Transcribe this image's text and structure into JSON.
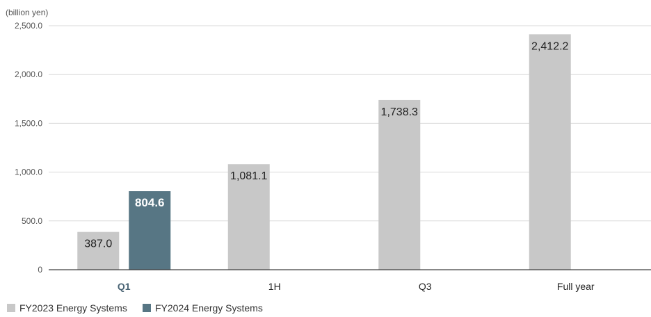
{
  "chart_data": {
    "type": "bar",
    "unit_label": "(billion yen)",
    "categories": [
      "Q1",
      "1H",
      "Q3",
      "Full year"
    ],
    "highlight_category": "Q1",
    "series": [
      {
        "name": "FY2023 Energy Systems",
        "color": "#c8c8c8",
        "values": [
          387.0,
          1081.1,
          1738.3,
          2412.2
        ],
        "labels": [
          "387.0",
          "1,081.1",
          "1,738.3",
          "2,412.2"
        ]
      },
      {
        "name": "FY2024 Energy Systems",
        "color": "#577684",
        "values": [
          804.6,
          null,
          null,
          null
        ],
        "labels": [
          "804.6",
          null,
          null,
          null
        ]
      }
    ],
    "ylim": [
      0,
      2500
    ],
    "yticks": [
      0,
      500,
      1000,
      1500,
      2000,
      2500
    ],
    "ytick_labels": [
      "0",
      "500.0",
      "1,000.0",
      "1,500.0",
      "2,000.0",
      "2,500.0"
    ],
    "grid": true,
    "legend_position": "bottom-left"
  }
}
